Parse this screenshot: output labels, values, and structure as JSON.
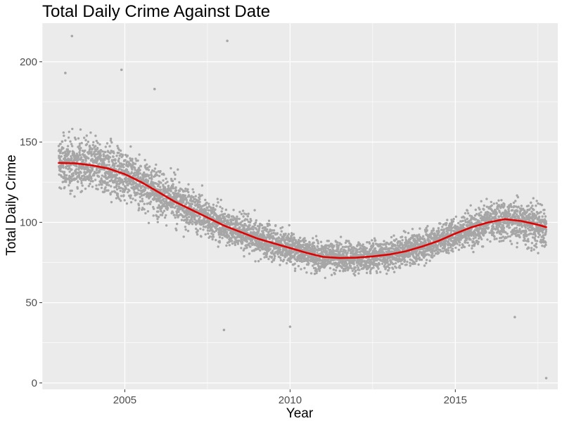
{
  "chart_data": {
    "type": "scatter",
    "title": "Total Daily Crime Against Date",
    "xlabel": "Year",
    "ylabel": "Total Daily Crime",
    "xlim": [
      2002.5,
      2018.1
    ],
    "ylim": [
      -4,
      224
    ],
    "x_ticks": [
      2005,
      2010,
      2015
    ],
    "x_tick_labels": [
      "2005",
      "2010",
      "2015"
    ],
    "y_ticks": [
      0,
      50,
      100,
      150,
      200
    ],
    "y_tick_labels": [
      "0",
      "50",
      "100",
      "150",
      "200"
    ],
    "grid": true,
    "legend": "none",
    "colors": {
      "panel": "#ebebeb",
      "grid": "#ffffff",
      "points": "#a6a6a6",
      "trend": "#e00000"
    },
    "series": [
      {
        "type": "scatter",
        "note_values": "daily totals, one point per day from 2003 to late 2017 (~5400 points)",
        "trend_anchor_x": [
          2003,
          2004,
          2005,
          2006,
          2007,
          2008,
          2009,
          2010,
          2011,
          2012,
          2013,
          2014,
          2015,
          2016,
          2016.5,
          2017,
          2017.75
        ],
        "trend_anchor_y": [
          137,
          135.5,
          130,
          119,
          108,
          98,
          90,
          84,
          78.5,
          78,
          80,
          85,
          93,
          100,
          102,
          100,
          97
        ],
        "spread_anchor_y": [
          24,
          24,
          23,
          21,
          19,
          17,
          16,
          15,
          14,
          14,
          14,
          14,
          16,
          18,
          18,
          20,
          22
        ],
        "outliers": [
          {
            "x": 2003.4,
            "y": 216
          },
          {
            "x": 2008.1,
            "y": 213
          },
          {
            "x": 2004.9,
            "y": 195
          },
          {
            "x": 2003.2,
            "y": 193
          },
          {
            "x": 2005.9,
            "y": 183
          },
          {
            "x": 2008.0,
            "y": 33
          },
          {
            "x": 2010.0,
            "y": 35
          },
          {
            "x": 2016.8,
            "y": 41
          },
          {
            "x": 2017.75,
            "y": 3
          }
        ]
      },
      {
        "type": "line",
        "x": [
          2003,
          2003.5,
          2004,
          2004.5,
          2005,
          2005.5,
          2006,
          2006.5,
          2007,
          2007.5,
          2008,
          2008.5,
          2009,
          2009.5,
          2010,
          2010.5,
          2011,
          2011.5,
          2012,
          2012.5,
          2013,
          2013.5,
          2014,
          2014.5,
          2015,
          2015.5,
          2016,
          2016.5,
          2017,
          2017.5,
          2017.75
        ],
        "y": [
          137,
          136.8,
          135.5,
          133.5,
          130,
          125,
          119,
          113,
          108,
          103,
          98,
          94,
          90,
          87,
          84,
          81,
          78.5,
          77.8,
          78,
          78.8,
          80,
          82,
          85,
          88.5,
          93,
          97,
          100,
          102,
          100.8,
          98.5,
          97
        ]
      }
    ]
  }
}
